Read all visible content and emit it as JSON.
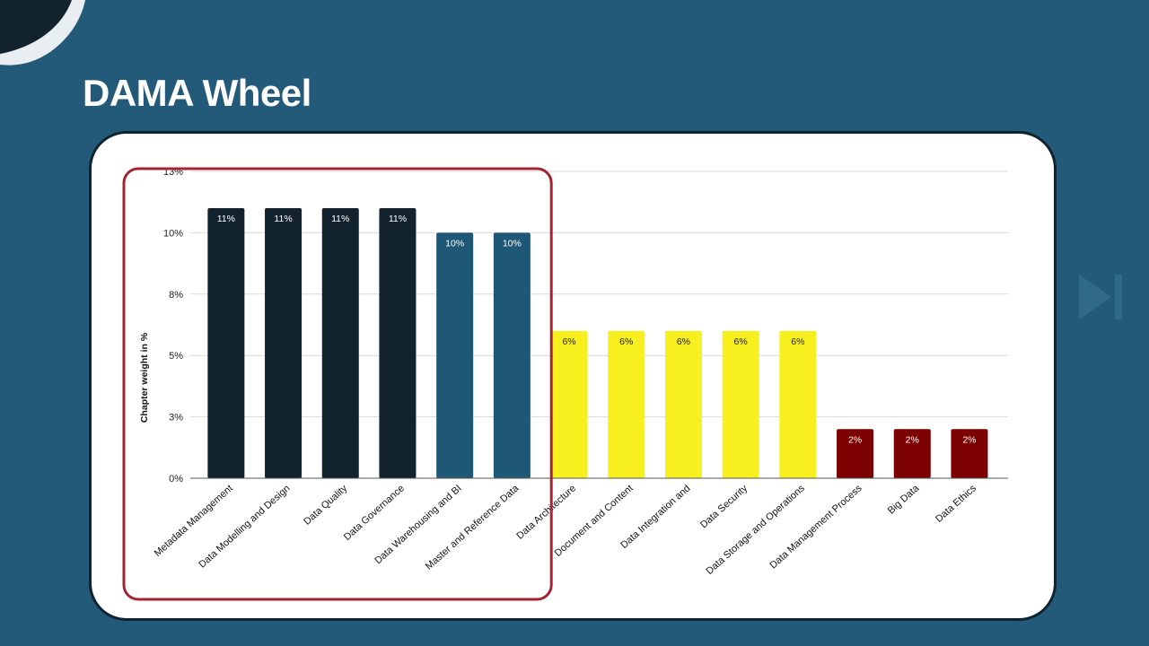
{
  "slide": {
    "title": "DAMA Wheel",
    "background_color": "#245a79"
  },
  "chart_data": {
    "type": "bar",
    "title": "",
    "xlabel": "",
    "ylabel": "Chapter weight in %",
    "ylim": [
      0,
      12.5
    ],
    "y_ticks": [
      0,
      2.5,
      5,
      7.5,
      10,
      12.5
    ],
    "y_tick_labels": [
      "0%",
      "3%",
      "5%",
      "8%",
      "10%",
      "13%"
    ],
    "grid": true,
    "categories": [
      "Metadata Management",
      "Data Modelling and Design",
      "Data Quality",
      "Data Governance",
      "Data Warehousing and BI",
      "Master and Reference Data",
      "Data Architecture",
      "Document and Content",
      "Data Integration and",
      "Data Security",
      "Data Storage and Operations",
      "Data Management Process",
      "Big Data",
      "Data Ethics"
    ],
    "values": [
      11,
      11,
      11,
      11,
      10,
      10,
      6,
      6,
      6,
      6,
      6,
      2,
      2,
      2
    ],
    "bar_heights": [
      11,
      11,
      11,
      11,
      10,
      10,
      6,
      6,
      6,
      6,
      6,
      2,
      2,
      2
    ],
    "data_labels": [
      "11%",
      "11%",
      "11%",
      "11%",
      "10%",
      "10%",
      "6%",
      "6%",
      "6%",
      "6%",
      "6%",
      "2%",
      "2%",
      "2%"
    ],
    "bar_colors": [
      "#13232e",
      "#13232e",
      "#13232e",
      "#13232e",
      "#1f5877",
      "#1f5877",
      "#f7ef1e",
      "#f7ef1e",
      "#f7ef1e",
      "#f7ef1e",
      "#f7ef1e",
      "#7d0000",
      "#7d0000",
      "#7d0000"
    ],
    "label_colors": [
      "#ffffff",
      "#ffffff",
      "#ffffff",
      "#ffffff",
      "#ffffff",
      "#ffffff",
      "#222222",
      "#222222",
      "#222222",
      "#222222",
      "#222222",
      "#ffffff",
      "#ffffff",
      "#ffffff"
    ],
    "highlight": {
      "from_category": 0,
      "to_category": 5,
      "color": "#a32530"
    }
  }
}
